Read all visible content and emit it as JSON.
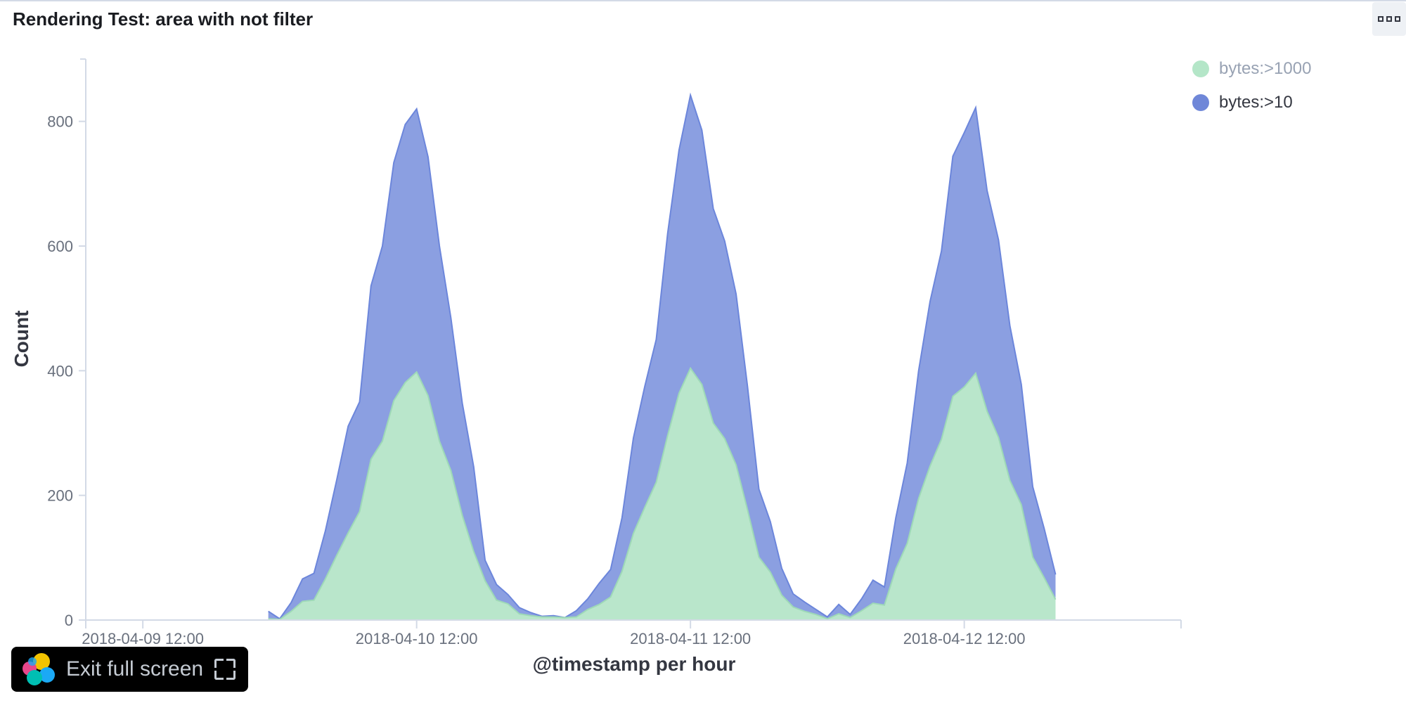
{
  "panel": {
    "title": "Rendering Test: area with not filter",
    "menu_icon": "ellipsis-icon"
  },
  "fullscreen": {
    "label": "Exit full screen",
    "logo_icon": "elastic-logo-icon",
    "icon": "exit-fullscreen-icon"
  },
  "colors": {
    "series_1000": "#b9e6cb",
    "series_1000_line": "#9ed9b7",
    "series_10": "#8b9fe1",
    "series_10_line": "#6c86db",
    "legend_dot_1000": "#b4e6c8",
    "legend_dot_10": "#6f87d8",
    "axis": "#d3dae6",
    "tick_text": "#69707d",
    "legend_text_1000": "#98a2b3",
    "legend_text_10": "#343741"
  },
  "chart_data": {
    "type": "area",
    "stacked": true,
    "xlabel": "@timestamp per hour",
    "ylabel": "Count",
    "ylim": [
      0,
      900
    ],
    "yticks": [
      0,
      200,
      400,
      600,
      800
    ],
    "xticks": [
      "2018-04-09 12:00",
      "2018-04-10 12:00",
      "2018-04-11 12:00",
      "2018-04-12 12:00"
    ],
    "xlim": [
      "2018-04-09 07:00",
      "2018-04-13 07:00"
    ],
    "legend_position": "top-right",
    "x_start": "2018-04-09 23:00",
    "x_step_hours": 1,
    "series": [
      {
        "name": "bytes:>1000",
        "values": [
          2,
          1,
          14,
          30,
          32,
          66,
          104,
          140,
          174,
          258,
          287,
          352,
          381,
          398,
          360,
          287,
          240,
          168,
          110,
          63,
          32,
          26,
          10,
          7,
          5,
          5,
          4,
          5,
          17,
          25,
          37,
          78,
          139,
          181,
          221,
          296,
          364,
          404,
          378,
          316,
          291,
          249,
          177,
          101,
          77,
          40,
          21,
          14,
          9,
          2,
          10,
          4,
          15,
          27,
          24,
          82,
          123,
          195,
          247,
          290,
          359,
          374,
          396,
          335,
          293,
          224,
          185,
          101,
          68,
          33
        ]
      },
      {
        "name": "bytes:>10",
        "values": [
          12,
          1,
          14,
          36,
          43,
          77,
          121,
          171,
          176,
          278,
          313,
          382,
          414,
          422,
          383,
          313,
          245,
          180,
          136,
          33,
          25,
          15,
          10,
          5,
          1,
          2,
          0,
          10,
          17,
          34,
          44,
          86,
          153,
          194,
          229,
          324,
          390,
          438,
          408,
          344,
          317,
          274,
          198,
          109,
          81,
          43,
          21,
          15,
          8,
          3,
          15,
          5,
          19,
          37,
          29,
          82,
          129,
          205,
          264,
          302,
          385,
          408,
          426,
          354,
          317,
          248,
          193,
          113,
          79,
          40
        ]
      }
    ]
  }
}
